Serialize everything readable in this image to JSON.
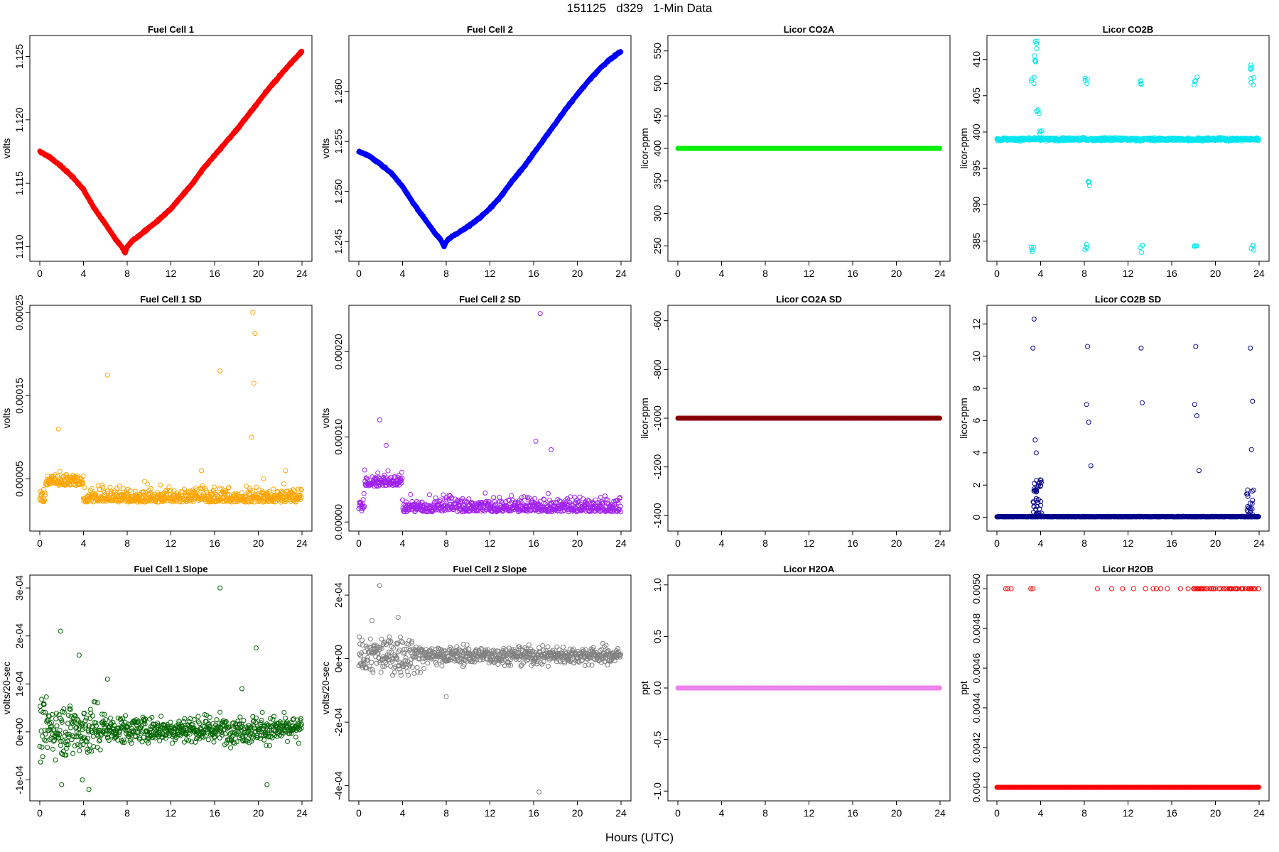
{
  "figure": {
    "title": "151125   d329   1-Min Data",
    "xlabel": "Hours (UTC)"
  },
  "chart_data": [
    {
      "type": "scatter",
      "title": "Fuel Cell 1",
      "ylabel": "volts",
      "color": "#ff0000",
      "xlim": [
        0,
        24
      ],
      "xticks": [
        0,
        4,
        8,
        12,
        16,
        20,
        24
      ],
      "ylim": [
        1.1093,
        1.1262
      ],
      "yticks": [
        "1.110",
        "1.115",
        "1.120",
        "1.125"
      ],
      "ytick_values": [
        1.11,
        1.115,
        1.12,
        1.125
      ],
      "series": [
        {
          "x": [
            0,
            1,
            2,
            3,
            4,
            5,
            6,
            7,
            7.5,
            7.8,
            8,
            8.5,
            9,
            10,
            11,
            12,
            13,
            14,
            15,
            16,
            17,
            18,
            19,
            20,
            21,
            22,
            23,
            24
          ],
          "y": [
            1.1175,
            1.117,
            1.1163,
            1.1155,
            1.1145,
            1.113,
            1.1118,
            1.1105,
            1.11,
            1.1095,
            1.11,
            1.1105,
            1.1108,
            1.1115,
            1.1122,
            1.113,
            1.114,
            1.115,
            1.1162,
            1.1172,
            1.1182,
            1.1192,
            1.1203,
            1.1214,
            1.1225,
            1.1235,
            1.1245,
            1.1254
          ]
        }
      ]
    },
    {
      "type": "scatter",
      "title": "Fuel Cell 2",
      "ylabel": "volts",
      "color": "#0000ff",
      "xlim": [
        0,
        24
      ],
      "xticks": [
        0,
        4,
        8,
        12,
        16,
        20,
        24
      ],
      "ylim": [
        1.2436,
        1.265
      ],
      "yticks": [
        "1.245",
        "1.250",
        "1.255",
        "1.260"
      ],
      "ytick_values": [
        1.245,
        1.25,
        1.255,
        1.26
      ],
      "series": [
        {
          "x": [
            0,
            1,
            2,
            3,
            4,
            5,
            6,
            7,
            7.5,
            7.8,
            8,
            8.5,
            9,
            10,
            11,
            12,
            13,
            14,
            15,
            16,
            17,
            18,
            19,
            20,
            21,
            22,
            23,
            24
          ],
          "y": [
            1.254,
            1.2535,
            1.2527,
            1.2518,
            1.2505,
            1.2488,
            1.2473,
            1.2458,
            1.2452,
            1.2445,
            1.245,
            1.2455,
            1.2458,
            1.2465,
            1.2473,
            1.2483,
            1.2495,
            1.251,
            1.2523,
            1.2538,
            1.2553,
            1.2568,
            1.2583,
            1.2597,
            1.261,
            1.2622,
            1.2632,
            1.264
          ]
        }
      ]
    },
    {
      "type": "scatter",
      "title": "Licor CO2A",
      "ylabel": "licor-ppm",
      "color": "#00ee00",
      "xlim": [
        0,
        24
      ],
      "xticks": [
        0,
        4,
        8,
        12,
        16,
        20,
        24
      ],
      "ylim": [
        235,
        565
      ],
      "yticks": [
        "250",
        "300",
        "350",
        "400",
        "450",
        "500",
        "550"
      ],
      "ytick_values": [
        250,
        300,
        350,
        400,
        450,
        500,
        550
      ],
      "series": [
        {
          "x": [
            0,
            24
          ],
          "y": [
            400,
            400
          ]
        }
      ]
    },
    {
      "type": "scatter",
      "title": "Licor CO2B",
      "ylabel": "licor-ppm",
      "color": "#00e5ee",
      "xlim": [
        0,
        24
      ],
      "xticks": [
        0,
        4,
        8,
        12,
        16,
        20,
        24
      ],
      "ylim": [
        383,
        412.5
      ],
      "yticks": [
        "385",
        "390",
        "395",
        "400",
        "405",
        "410"
      ],
      "ytick_values": [
        385,
        390,
        395,
        400,
        405,
        410
      ],
      "series": [
        {
          "x": [
            0,
            3,
            3.3,
            3.5,
            3.6,
            3.8,
            4,
            4.2,
            8,
            8.2,
            8.5,
            13,
            13.2,
            18,
            18.2,
            23.2,
            23.4,
            24
          ],
          "y": [
            399,
            399,
            407,
            410,
            412,
            403,
            400,
            399,
            399,
            407,
            393,
            399,
            407,
            399,
            407,
            409,
            407,
            399
          ]
        },
        {
          "x": [
            3.3,
            8.2,
            13.2,
            18.2,
            23.4
          ],
          "y": [
            384,
            384,
            384,
            384,
            384
          ]
        }
      ]
    },
    {
      "type": "scatter",
      "title": "Fuel Cell 1 SD",
      "ylabel": "volts",
      "color": "#ffa500",
      "xlim": [
        0,
        24
      ],
      "xticks": [
        0,
        4,
        8,
        12,
        16,
        20,
        24
      ],
      "ylim": [
        -6e-06,
        0.000252
      ],
      "yticks": [
        "0.00005",
        "0.00015",
        "0.00025"
      ],
      "ytick_values": [
        5e-05,
        0.00015,
        0.00025
      ],
      "series": [
        {
          "x": [
            1.7,
            6.2,
            16.5,
            19.5,
            19.7,
            19.6,
            19.4,
            14.8,
            20.5,
            22.5
          ],
          "y": [
            0.00011,
            0.000175,
            0.00018,
            0.00025,
            0.000225,
            0.000165,
            0.0001,
            6e-05,
            5e-05,
            6e-05
          ]
        }
      ]
    },
    {
      "type": "scatter",
      "title": "Fuel Cell 2 SD",
      "ylabel": "volts",
      "color": "#a020f0",
      "xlim": [
        0,
        24
      ],
      "xticks": [
        0,
        4,
        8,
        12,
        16,
        20,
        24
      ],
      "ylim": [
        -4e-06,
        0.000248
      ],
      "yticks": [
        "0.00000",
        "0.00010",
        "0.00020"
      ],
      "ytick_values": [
        0,
        0.0001,
        0.0002
      ],
      "series": [
        {
          "x": [
            1.9,
            16.6,
            17.6,
            16.2,
            2.5
          ],
          "y": [
            0.00012,
            0.000245,
            8.5e-05,
            9.5e-05,
            9e-05
          ]
        }
      ]
    },
    {
      "type": "scatter",
      "title": "Licor CO2A SD",
      "ylabel": "licor-ppm",
      "color": "#8b0000",
      "xlim": [
        0,
        24
      ],
      "xticks": [
        0,
        4,
        8,
        12,
        16,
        20,
        24
      ],
      "ylim": [
        -1440,
        -560
      ],
      "yticks": [
        "-1400",
        "-1200",
        "-1000",
        "-800",
        "-600"
      ],
      "ytick_values": [
        -1400,
        -1200,
        -1000,
        -800,
        -600
      ],
      "series": [
        {
          "x": [
            0,
            24
          ],
          "y": [
            -1000,
            -1000
          ]
        }
      ]
    },
    {
      "type": "scatter",
      "title": "Licor CO2B SD",
      "ylabel": "licor-ppm",
      "color": "#00008b",
      "xlim": [
        0,
        24
      ],
      "xticks": [
        0,
        4,
        8,
        12,
        16,
        20,
        24
      ],
      "ylim": [
        -0.5,
        12.8
      ],
      "yticks": [
        "0",
        "2",
        "4",
        "6",
        "8",
        "10",
        "12"
      ],
      "ytick_values": [
        0,
        2,
        4,
        6,
        8,
        10,
        12
      ],
      "series": [
        {
          "x": [
            3.4,
            3.3,
            8.3,
            13.2,
            18.2,
            23.2,
            3.5,
            8.2,
            13.3,
            18.1,
            23.4,
            8.4,
            18.3,
            23.3,
            3.6,
            8.6,
            18.5
          ],
          "y": [
            12.3,
            10.5,
            10.6,
            10.5,
            10.6,
            10.5,
            4.8,
            7.0,
            7.1,
            7.0,
            7.2,
            5.9,
            6.3,
            4.2,
            4.0,
            3.2,
            2.9
          ]
        }
      ]
    },
    {
      "type": "scatter",
      "title": "Fuel Cell 1 Slope",
      "ylabel": "volts/20-sec",
      "color": "#006400",
      "xlim": [
        0,
        24
      ],
      "xticks": [
        0,
        4,
        8,
        12,
        16,
        20,
        24
      ],
      "ylim": [
        -0.000132,
        0.000315
      ],
      "yticks": [
        "-1e-04",
        "0e+00",
        "1e-04",
        "2e-04",
        "3e-04"
      ],
      "ytick_values": [
        -0.0001,
        0,
        0.0001,
        0.0002,
        0.0003
      ],
      "series": [
        {
          "x": [
            16.5,
            1.9,
            3.6,
            19.8,
            6.2,
            4.5,
            20.8,
            3.9,
            2.0,
            18.5
          ],
          "y": [
            0.0003,
            0.00021,
            0.00016,
            0.000175,
            0.00011,
            -0.00012,
            -0.00011,
            -0.0001,
            -0.00011,
            9e-05
          ]
        }
      ]
    },
    {
      "type": "scatter",
      "title": "Fuel Cell 2 Slope",
      "ylabel": "volts/20-sec",
      "color": "#808080",
      "xlim": [
        0,
        24
      ],
      "xticks": [
        0,
        4,
        8,
        12,
        16,
        20,
        24
      ],
      "ylim": [
        -0.00043,
        0.000245
      ],
      "yticks": [
        "-4e-04",
        "-2e-04",
        "0e+00",
        "2e-04"
      ],
      "ytick_values": [
        -0.0004,
        -0.0002,
        0,
        0.0002
      ],
      "series": [
        {
          "x": [
            1.9,
            16.5,
            3.6,
            8.0,
            1.2
          ],
          "y": [
            0.00023,
            -0.00042,
            0.00013,
            -0.00012,
            0.00012
          ]
        }
      ]
    },
    {
      "type": "scatter",
      "title": "Licor H2OA",
      "ylabel": "ppt",
      "color": "#ee82ee",
      "xlim": [
        0,
        24
      ],
      "xticks": [
        0,
        4,
        8,
        12,
        16,
        20,
        24
      ],
      "ylim": [
        -1.04,
        1.04
      ],
      "yticks": [
        "-1.0",
        "-0.5",
        "0.0",
        "0.5",
        "1.0"
      ],
      "ytick_values": [
        -1.0,
        -0.5,
        0.0,
        0.5,
        1.0
      ],
      "series": [
        {
          "x": [
            0,
            24
          ],
          "y": [
            0,
            0
          ]
        }
      ]
    },
    {
      "type": "scatter",
      "title": "Licor H2OB",
      "ylabel": "ppt",
      "color": "#ff0000",
      "xlim": [
        0,
        24
      ],
      "xticks": [
        0,
        4,
        8,
        12,
        16,
        20,
        24
      ],
      "ylim": [
        0.00396,
        0.00504
      ],
      "yticks": [
        "0.0040",
        "0.0042",
        "0.0044",
        "0.0046",
        "0.0048",
        "0.0050"
      ],
      "ytick_values": [
        0.004,
        0.0042,
        0.0044,
        0.0046,
        0.0048,
        0.005
      ],
      "series": [
        {
          "x": [
            0,
            24
          ],
          "y": [
            0.004,
            0.004
          ]
        },
        {
          "x": [
            0.8,
            1.0,
            1.3,
            3.1,
            3.3,
            9.2,
            10.5,
            11.5,
            12.5,
            13.6,
            14.3,
            14.6,
            15.0,
            15.6,
            16.8,
            17.5,
            18.0,
            18.3,
            18.6,
            19.0,
            19.5,
            20.0,
            20.5,
            21.0,
            21.5,
            22.0,
            22.5,
            23.0,
            23.3,
            23.6
          ],
          "y": [
            0.005,
            0.005,
            0.005,
            0.005,
            0.005,
            0.005,
            0.005,
            0.005,
            0.005,
            0.005,
            0.005,
            0.005,
            0.005,
            0.005,
            0.005,
            0.005,
            0.005,
            0.005,
            0.005,
            0.005,
            0.005,
            0.005,
            0.005,
            0.005,
            0.005,
            0.005,
            0.005,
            0.005,
            0.005,
            0.005
          ]
        }
      ]
    }
  ]
}
